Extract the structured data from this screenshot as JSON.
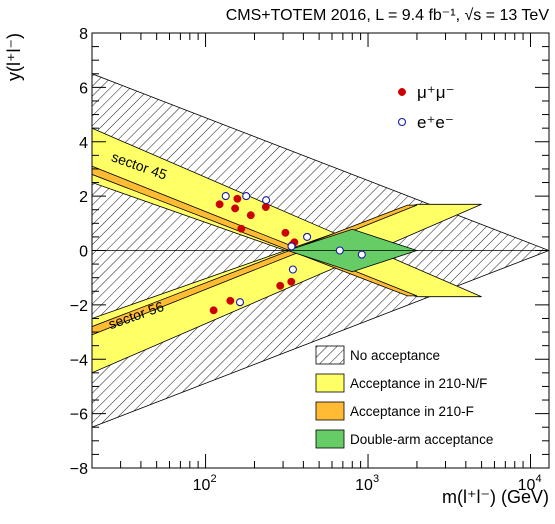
{
  "chart_data": {
    "type": "scatter",
    "title": "CMS+TOTEM 2016, L = 9.4 fb⁻¹, √s = 13 TeV",
    "xlabel": "m(l⁺l⁻) (GeV)",
    "ylabel": "y(l⁺l⁻)",
    "xscale": "log",
    "xlim": [
      20,
      13000
    ],
    "ylim": [
      -8,
      8
    ],
    "x_ticks": [
      {
        "value": 100,
        "label": "10",
        "exp": "2"
      },
      {
        "value": 1000,
        "label": "10",
        "exp": "3"
      },
      {
        "value": 10000,
        "label": "10",
        "exp": "4"
      }
    ],
    "y_ticks": [
      {
        "value": -8,
        "label": "−8"
      },
      {
        "value": -6,
        "label": "−6"
      },
      {
        "value": -4,
        "label": "−4"
      },
      {
        "value": -2,
        "label": "−2"
      },
      {
        "value": 0,
        "label": "0"
      },
      {
        "value": 2,
        "label": "2"
      },
      {
        "value": 4,
        "label": "4"
      },
      {
        "value": 6,
        "label": "6"
      },
      {
        "value": 8,
        "label": "8"
      }
    ],
    "regions": [
      {
        "name": "No acceptance",
        "color": "#ffffff",
        "style": "hatched",
        "polygon": [
          [
            20,
            6.5
          ],
          [
            13000,
            0
          ],
          [
            20,
            -6.5
          ]
        ]
      },
      {
        "name": "Acceptance in 210-N/F",
        "color": "#ffff66",
        "polygons": [
          [
            [
              20,
              4.5
            ],
            [
              20,
              2.5
            ],
            [
              2000,
              -1.7
            ],
            [
              5000,
              -1.7
            ]
          ],
          [
            [
              20,
              -4.5
            ],
            [
              20,
              -2.5
            ],
            [
              2000,
              1.7
            ],
            [
              5000,
              1.7
            ]
          ]
        ]
      },
      {
        "name": "Acceptance in 210-F",
        "color": "#ffbb33",
        "polygons": [
          [
            [
              20,
              3.1
            ],
            [
              20,
              2.8
            ],
            [
              1750,
              -1.67
            ],
            [
              2000,
              -1.67
            ]
          ],
          [
            [
              20,
              -3.1
            ],
            [
              20,
              -2.8
            ],
            [
              1750,
              1.67
            ],
            [
              2000,
              1.67
            ]
          ]
        ]
      },
      {
        "name": "Double-arm acceptance",
        "color": "#66cc66",
        "polygon": [
          [
            320,
            0
          ],
          [
            800,
            0.78
          ],
          [
            2000,
            0
          ],
          [
            800,
            -0.78
          ]
        ]
      }
    ],
    "region_labels": [
      {
        "text": "sector 45",
        "x": 26,
        "y": 3.3
      },
      {
        "text": "sector 56",
        "x": 26,
        "y": -2.9
      }
    ],
    "series": [
      {
        "name": "μ⁺μ⁻",
        "marker": "filled-circle",
        "color": "#cc0000",
        "points": [
          [
            112,
            -2.2
          ],
          [
            122,
            1.7
          ],
          [
            142,
            -1.85
          ],
          [
            152,
            1.55
          ],
          [
            157,
            1.9
          ],
          [
            166,
            0.8
          ],
          [
            190,
            1.3
          ],
          [
            235,
            1.6
          ],
          [
            288,
            -1.3
          ],
          [
            310,
            0.65
          ],
          [
            337,
            -1.15
          ],
          [
            340,
            0.2
          ],
          [
            352,
            0.3
          ]
        ]
      },
      {
        "name": "e⁺e⁻",
        "marker": "open-circle",
        "color": "#1a1aaa",
        "points": [
          [
            133,
            2.0
          ],
          [
            163,
            -1.9
          ],
          [
            178,
            2.0
          ],
          [
            236,
            1.85
          ],
          [
            338,
            0.15
          ],
          [
            345,
            -0.7
          ],
          [
            422,
            0.5
          ],
          [
            670,
            0.0
          ],
          [
            915,
            -0.15
          ]
        ]
      }
    ],
    "legend_position": "top-right",
    "regions_legend_position": "bottom-right"
  }
}
